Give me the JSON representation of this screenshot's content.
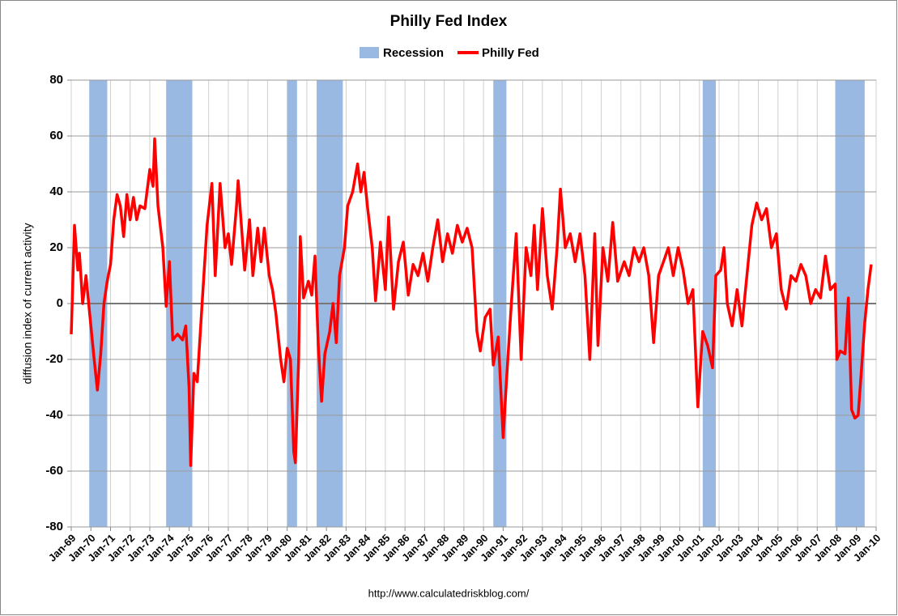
{
  "chart_data": {
    "type": "line",
    "title": "Philly Fed Index",
    "y_label": "diffusion index of current activity",
    "source": "http://www.calculatedriskblog.com/",
    "legend": "top",
    "grid": true,
    "bands": {
      "name": "Recession",
      "color": "#99b9e3",
      "periods": [
        [
          "1969-12",
          "1970-11"
        ],
        [
          "1973-11",
          "1975-03"
        ],
        [
          "1980-01",
          "1980-07"
        ],
        [
          "1981-07",
          "1982-11"
        ],
        [
          "1990-07",
          "1991-03"
        ],
        [
          "2001-03",
          "2001-11"
        ],
        [
          "2007-12",
          "2009-06"
        ]
      ]
    },
    "x": [
      "1969-01",
      "1969-03",
      "1969-05",
      "1969-06",
      "1969-08",
      "1969-10",
      "1969-12",
      "1970-03",
      "1970-05",
      "1970-07",
      "1970-09",
      "1970-11",
      "1971-01",
      "1971-03",
      "1971-05",
      "1971-07",
      "1971-09",
      "1971-11",
      "1972-01",
      "1972-03",
      "1972-05",
      "1972-07",
      "1972-10",
      "1973-01",
      "1973-03",
      "1973-04",
      "1973-06",
      "1973-09",
      "1973-11",
      "1974-01",
      "1974-03",
      "1974-06",
      "1974-09",
      "1974-11",
      "1975-01",
      "1975-02",
      "1975-04",
      "1975-06",
      "1975-09",
      "1975-12",
      "1976-03",
      "1976-05",
      "1976-08",
      "1976-11",
      "1977-01",
      "1977-03",
      "1977-06",
      "1977-07",
      "1977-09",
      "1977-11",
      "1978-02",
      "1978-04",
      "1978-07",
      "1978-09",
      "1978-11",
      "1979-02",
      "1979-04",
      "1979-06",
      "1979-09",
      "1979-11",
      "1980-01",
      "1980-03",
      "1980-05",
      "1980-06",
      "1980-08",
      "1980-09",
      "1980-11",
      "1981-02",
      "1981-04",
      "1981-06",
      "1981-08",
      "1981-10",
      "1981-12",
      "1982-03",
      "1982-05",
      "1982-07",
      "1982-09",
      "1982-12",
      "1983-02",
      "1983-05",
      "1983-08",
      "1983-10",
      "1983-12",
      "1984-02",
      "1984-05",
      "1984-07",
      "1984-10",
      "1985-01",
      "1985-03",
      "1985-06",
      "1985-09",
      "1985-12",
      "1986-03",
      "1986-06",
      "1986-09",
      "1986-12",
      "1987-03",
      "1987-06",
      "1987-09",
      "1987-12",
      "1988-03",
      "1988-06",
      "1988-09",
      "1988-12",
      "1989-03",
      "1989-06",
      "1989-09",
      "1989-11",
      "1990-02",
      "1990-05",
      "1990-07",
      "1990-10",
      "1991-01",
      "1991-03",
      "1991-06",
      "1991-09",
      "1991-12",
      "1992-03",
      "1992-06",
      "1992-08",
      "1992-10",
      "1993-01",
      "1993-04",
      "1993-07",
      "1993-10",
      "1993-12",
      "1994-03",
      "1994-06",
      "1994-09",
      "1994-12",
      "1995-03",
      "1995-06",
      "1995-09",
      "1995-11",
      "1996-02",
      "1996-05",
      "1996-08",
      "1996-11",
      "1997-03",
      "1997-06",
      "1997-09",
      "1997-12",
      "1998-03",
      "1998-06",
      "1998-09",
      "1998-12",
      "1999-03",
      "1999-06",
      "1999-09",
      "1999-12",
      "2000-03",
      "2000-06",
      "2000-09",
      "2000-12",
      "2001-03",
      "2001-06",
      "2001-09",
      "2001-11",
      "2002-02",
      "2002-04",
      "2002-06",
      "2002-09",
      "2002-12",
      "2003-03",
      "2003-06",
      "2003-09",
      "2003-12",
      "2004-03",
      "2004-06",
      "2004-09",
      "2004-12",
      "2005-03",
      "2005-06",
      "2005-09",
      "2005-12",
      "2006-03",
      "2006-06",
      "2006-09",
      "2006-12",
      "2007-03",
      "2007-06",
      "2007-09",
      "2007-12",
      "2008-01",
      "2008-03",
      "2008-06",
      "2008-08",
      "2008-10",
      "2008-12",
      "2009-02",
      "2009-04",
      "2009-06",
      "2009-08",
      "2009-10"
    ],
    "series": [
      {
        "name": "Philly Fed",
        "color": "#ff0000",
        "values": [
          -11,
          28,
          12,
          18,
          0,
          10,
          -2,
          -20,
          -31,
          -18,
          0,
          8,
          14,
          30,
          39,
          35,
          24,
          39,
          30,
          38,
          30,
          35,
          34,
          48,
          42,
          59,
          35,
          20,
          -1,
          15,
          -13,
          -11,
          -13,
          -8,
          -30,
          -58,
          -25,
          -28,
          0,
          28,
          43,
          10,
          43,
          20,
          25,
          14,
          35,
          44,
          28,
          12,
          30,
          10,
          27,
          15,
          27,
          10,
          5,
          -3,
          -20,
          -28,
          -16,
          -20,
          -53,
          -57,
          -20,
          24,
          2,
          8,
          3,
          17,
          -15,
          -35,
          -18,
          -10,
          0,
          -14,
          10,
          20,
          35,
          40,
          50,
          40,
          47,
          35,
          20,
          1,
          22,
          5,
          31,
          -2,
          15,
          22,
          3,
          14,
          10,
          18,
          8,
          20,
          30,
          15,
          25,
          18,
          28,
          22,
          27,
          20,
          -10,
          -17,
          -5,
          -2,
          -22,
          -12,
          -48,
          -28,
          0,
          25,
          -20,
          20,
          10,
          28,
          5,
          34,
          10,
          -2,
          20,
          41,
          20,
          25,
          15,
          25,
          10,
          -20,
          25,
          -15,
          20,
          8,
          29,
          8,
          15,
          10,
          20,
          15,
          20,
          10,
          -14,
          10,
          15,
          20,
          10,
          20,
          12,
          0,
          5,
          -37,
          -10,
          -15,
          -23,
          10,
          12,
          20,
          0,
          -8,
          5,
          -8,
          10,
          28,
          36,
          30,
          34,
          20,
          25,
          5,
          -2,
          10,
          8,
          14,
          10,
          0,
          5,
          2,
          17,
          5,
          7,
          -20,
          -17,
          -18,
          2,
          -38,
          -41,
          -40,
          -24,
          -7,
          5,
          14
        ]
      }
    ],
    "xlim": [
      "1969-01",
      "2010-01"
    ],
    "xticks": [
      {
        "value": "1969-01",
        "label": "Jan-69"
      },
      {
        "value": "1970-01",
        "label": "Jan-70"
      },
      {
        "value": "1971-01",
        "label": "Jan-71"
      },
      {
        "value": "1972-01",
        "label": "Jan-72"
      },
      {
        "value": "1973-01",
        "label": "Jan-73"
      },
      {
        "value": "1974-01",
        "label": "Jan-74"
      },
      {
        "value": "1975-01",
        "label": "Jan-75"
      },
      {
        "value": "1976-01",
        "label": "Jan-76"
      },
      {
        "value": "1977-01",
        "label": "Jan-77"
      },
      {
        "value": "1978-01",
        "label": "Jan-78"
      },
      {
        "value": "1979-01",
        "label": "Jan-79"
      },
      {
        "value": "1980-01",
        "label": "Jan-80"
      },
      {
        "value": "1981-01",
        "label": "Jan-81"
      },
      {
        "value": "1982-01",
        "label": "Jan-82"
      },
      {
        "value": "1983-01",
        "label": "Jan-83"
      },
      {
        "value": "1984-01",
        "label": "Jan-84"
      },
      {
        "value": "1985-01",
        "label": "Jan-85"
      },
      {
        "value": "1986-01",
        "label": "Jan-86"
      },
      {
        "value": "1987-01",
        "label": "Jan-87"
      },
      {
        "value": "1988-01",
        "label": "Jan-88"
      },
      {
        "value": "1989-01",
        "label": "Jan-89"
      },
      {
        "value": "1990-01",
        "label": "Jan-90"
      },
      {
        "value": "1991-01",
        "label": "Jan-91"
      },
      {
        "value": "1992-01",
        "label": "Jan-92"
      },
      {
        "value": "1993-01",
        "label": "Jan-93"
      },
      {
        "value": "1994-01",
        "label": "Jan-94"
      },
      {
        "value": "1995-01",
        "label": "Jan-95"
      },
      {
        "value": "1996-01",
        "label": "Jan-96"
      },
      {
        "value": "1997-01",
        "label": "Jan-97"
      },
      {
        "value": "1998-01",
        "label": "Jan-98"
      },
      {
        "value": "1999-01",
        "label": "Jan-99"
      },
      {
        "value": "2000-01",
        "label": "Jan-00"
      },
      {
        "value": "2001-01",
        "label": "Jan-01"
      },
      {
        "value": "2002-01",
        "label": "Jan-02"
      },
      {
        "value": "2003-01",
        "label": "Jan-03"
      },
      {
        "value": "2004-01",
        "label": "Jan-04"
      },
      {
        "value": "2005-01",
        "label": "Jan-05"
      },
      {
        "value": "2006-01",
        "label": "Jan-06"
      },
      {
        "value": "2007-01",
        "label": "Jan-07"
      },
      {
        "value": "2008-01",
        "label": "Jan-08"
      },
      {
        "value": "2009-01",
        "label": "Jan-09"
      },
      {
        "value": "2010-01",
        "label": "Jan-10"
      }
    ],
    "ylim": [
      -80,
      80
    ],
    "yticks": [
      -80,
      -60,
      -40,
      -20,
      0,
      20,
      40,
      60,
      80
    ]
  }
}
